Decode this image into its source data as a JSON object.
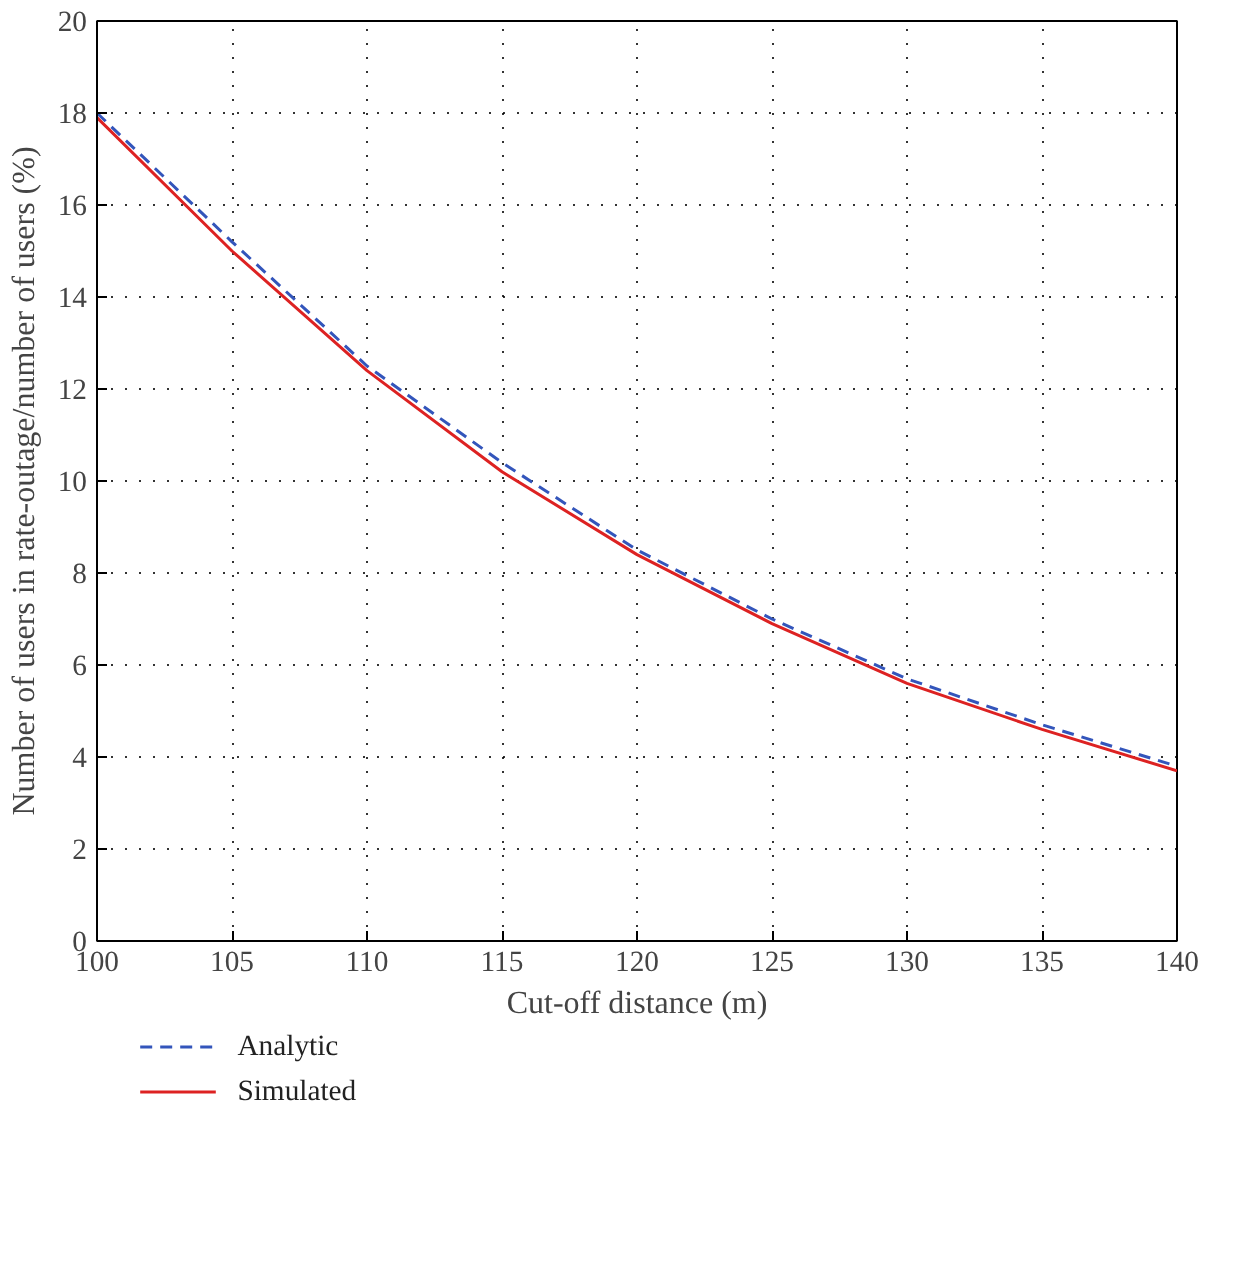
{
  "chart_data": {
    "type": "line",
    "xlabel": "Cut-off distance (m)",
    "ylabel": "Number of users in rate-outage/number of users (%)",
    "x": [
      100,
      105,
      110,
      115,
      120,
      125,
      130,
      135,
      140
    ],
    "series": [
      {
        "name": "Analytic",
        "color": "#3355bb",
        "line_style": "dashed",
        "values": [
          18.0,
          15.2,
          12.5,
          10.4,
          8.5,
          7.0,
          5.7,
          4.7,
          3.8
        ]
      },
      {
        "name": "Simulated",
        "color": "#dd2222",
        "line_style": "solid",
        "values": [
          17.9,
          15.0,
          12.4,
          10.2,
          8.4,
          6.9,
          5.6,
          4.6,
          3.7
        ]
      }
    ],
    "xlim": [
      100,
      140
    ],
    "ylim": [
      0,
      20
    ],
    "xticks": [
      100,
      105,
      110,
      115,
      120,
      125,
      130,
      135,
      140
    ],
    "yticks": [
      0,
      2,
      4,
      6,
      8,
      10,
      12,
      14,
      16,
      18,
      20
    ],
    "grid": true,
    "legend": "bottom"
  }
}
